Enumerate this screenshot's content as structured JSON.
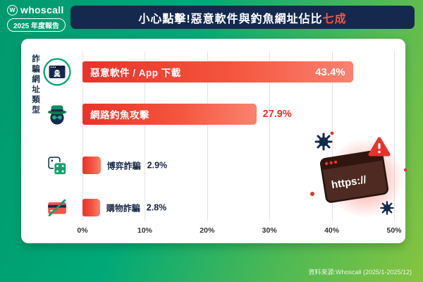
{
  "header": {
    "brand_initial": "W",
    "brand": "whoscall",
    "year_badge": "2025 年度報告",
    "title_main": "小心點擊!惡意軟件與釣魚網址佔比",
    "title_highlight": "七成"
  },
  "chart_data": {
    "type": "bar",
    "orientation": "horizontal",
    "title": "小心點擊!惡意軟件與釣魚網址佔比七成",
    "ylabel": "詐騙網址類型",
    "categories": [
      "惡意軟件 / App 下載",
      "網路釣魚攻擊",
      "博弈詐騙",
      "購物詐騙"
    ],
    "values": [
      43.4,
      27.9,
      2.9,
      2.8
    ],
    "value_labels": [
      "43.4%",
      "27.9%",
      "2.9%",
      "2.8%"
    ],
    "ticks": [
      "0%",
      "10%",
      "20%",
      "30%",
      "40%",
      "50%"
    ],
    "xlim": [
      0,
      50
    ],
    "grid": true,
    "legend": false,
    "icons": [
      "malware-browser-skull-icon",
      "phishing-spy-icon",
      "gambling-dice-icon",
      "shopping-scam-card-icon"
    ]
  },
  "decor": {
    "browser_text": "https://"
  },
  "footer": {
    "source": "資料來源:Whoscall (2025/1-2025/12)"
  },
  "theme": {
    "green": "#00a878",
    "navy": "#15294e",
    "red": "#e8332a",
    "highlight": "#f4553e"
  }
}
